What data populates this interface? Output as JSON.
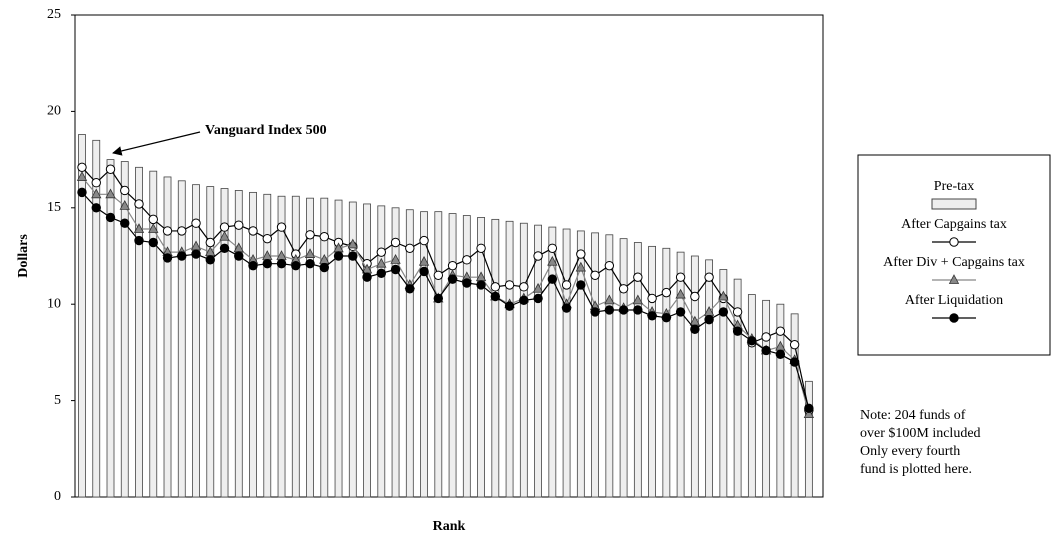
{
  "chart_data": {
    "type": "bar-line",
    "x_label": "Rank",
    "y_label": "Dollars",
    "categories": [
      null,
      null,
      null,
      null,
      null,
      null,
      null,
      null,
      null,
      null,
      null,
      null,
      null,
      null,
      null,
      null,
      null,
      null,
      null,
      null,
      null,
      null,
      null,
      null,
      null,
      null,
      null,
      null,
      null,
      null,
      null,
      null,
      null,
      null,
      null,
      null,
      null,
      null,
      null,
      null,
      null,
      null,
      null,
      null,
      null,
      null,
      null,
      null,
      null,
      null,
      null,
      null
    ],
    "series": [
      {
        "name": "Pre-tax",
        "kind": "bar",
        "color": "#eeeeee",
        "values": [
          18.8,
          18.5,
          17.5,
          17.4,
          17.1,
          16.9,
          16.6,
          16.4,
          16.2,
          16.1,
          16.0,
          15.9,
          15.8,
          15.7,
          15.6,
          15.6,
          15.5,
          15.5,
          15.4,
          15.3,
          15.2,
          15.1,
          15.0,
          14.9,
          14.8,
          14.8,
          14.7,
          14.6,
          14.5,
          14.4,
          14.3,
          14.2,
          14.1,
          14.0,
          13.9,
          13.8,
          13.7,
          13.6,
          13.4,
          13.2,
          13.0,
          12.9,
          12.7,
          12.5,
          12.3,
          11.8,
          11.3,
          10.5,
          10.2,
          10.0,
          9.5,
          6.0
        ]
      },
      {
        "name": "After Capgains tax",
        "kind": "line",
        "marker": "open-circle",
        "color": "#000000",
        "values": [
          17.1,
          16.3,
          17.0,
          15.9,
          15.2,
          14.4,
          13.8,
          13.8,
          14.2,
          13.2,
          14.0,
          14.1,
          13.8,
          13.4,
          14.0,
          12.6,
          13.6,
          13.5,
          13.2,
          13.0,
          12.1,
          12.7,
          13.2,
          12.9,
          13.3,
          11.5,
          12.0,
          12.3,
          12.9,
          10.9,
          11.0,
          10.9,
          12.5,
          12.9,
          11.0,
          12.6,
          11.5,
          12.0,
          10.8,
          11.4,
          10.3,
          10.6,
          11.4,
          10.4,
          11.4,
          10.3,
          9.6,
          8.0,
          8.3,
          8.6,
          7.9,
          4.5
        ]
      },
      {
        "name": "After Div + Capgains tax",
        "kind": "line",
        "marker": "triangle",
        "color": "#888888",
        "values": [
          16.6,
          15.7,
          15.7,
          15.1,
          13.9,
          13.9,
          12.7,
          12.7,
          13.0,
          12.7,
          13.5,
          12.9,
          12.3,
          12.5,
          12.5,
          12.3,
          12.6,
          12.3,
          12.9,
          13.1,
          11.8,
          12.1,
          12.3,
          11.0,
          12.2,
          10.3,
          11.5,
          11.4,
          11.4,
          10.4,
          10.0,
          10.3,
          10.8,
          12.2,
          10.0,
          11.9,
          9.9,
          10.2,
          9.8,
          10.2,
          9.6,
          9.5,
          10.5,
          9.1,
          9.6,
          10.4,
          8.9,
          8.2,
          7.6,
          7.8,
          7.1,
          4.3
        ]
      },
      {
        "name": "After Liquidation",
        "kind": "line",
        "marker": "filled-circle",
        "color": "#000000",
        "values": [
          15.8,
          15.0,
          14.5,
          14.2,
          13.3,
          13.2,
          12.4,
          12.5,
          12.6,
          12.3,
          12.9,
          12.5,
          12.0,
          12.1,
          12.1,
          12.0,
          12.1,
          11.9,
          12.5,
          12.5,
          11.4,
          11.6,
          11.8,
          10.8,
          11.7,
          10.3,
          11.3,
          11.1,
          11.0,
          10.4,
          9.9,
          10.2,
          10.3,
          11.3,
          9.8,
          11.0,
          9.6,
          9.7,
          9.7,
          9.7,
          9.4,
          9.3,
          9.6,
          8.7,
          9.2,
          9.6,
          8.6,
          8.1,
          7.6,
          7.4,
          7.0,
          4.6
        ]
      }
    ],
    "ylim": [
      0,
      25
    ],
    "yticks": [
      0,
      5,
      10,
      15,
      20,
      25
    ],
    "grid": false,
    "annotation": "Vanguard Index 500",
    "note": [
      "Note: 204 funds of",
      "over $100M included",
      "Only every fourth",
      "fund is plotted here."
    ]
  }
}
